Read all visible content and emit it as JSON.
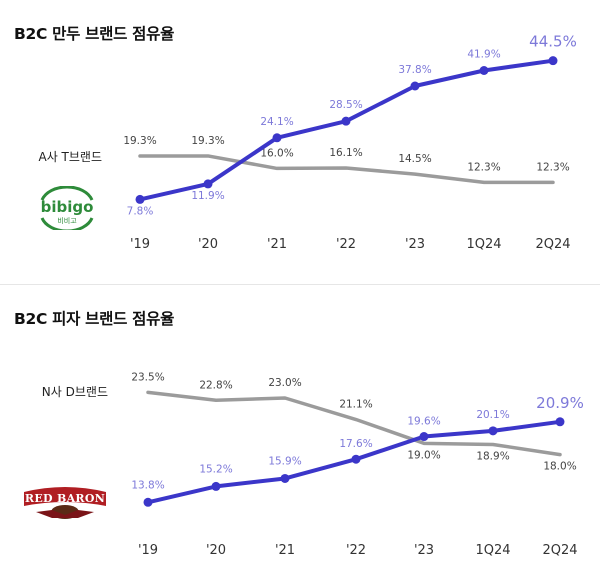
{
  "chart_data": [
    {
      "type": "line",
      "title": "B2C 만두 브랜드 점유율",
      "categories": [
        "'19",
        "'20",
        "'21",
        "'22",
        "'23",
        "1Q24",
        "2Q24"
      ],
      "series": [
        {
          "name": "A사 T브랜드",
          "values": [
            19.3,
            19.3,
            16.0,
            16.1,
            14.5,
            12.3,
            12.3
          ],
          "color": "#9b9b9b"
        },
        {
          "values": [
            7.8,
            11.9,
            24.1,
            28.5,
            37.8,
            41.9,
            44.5
          ],
          "color": "#3b36c9",
          "logo": "bibigo"
        }
      ],
      "value_suffix": "%",
      "ylim": [
        5,
        46
      ],
      "grid": false
    },
    {
      "type": "line",
      "title": "B2C 피자 브랜드 점유율",
      "categories": [
        "'19",
        "'20",
        "'21",
        "'22",
        "'23",
        "1Q24",
        "2Q24"
      ],
      "series": [
        {
          "name": "N사 D브랜드",
          "values": [
            23.5,
            22.8,
            23.0,
            21.1,
            19.0,
            18.9,
            18.0
          ],
          "color": "#9b9b9b"
        },
        {
          "values": [
            13.8,
            15.2,
            15.9,
            17.6,
            19.6,
            20.1,
            20.9
          ],
          "color": "#3b36c9",
          "logo": "RED BARON"
        }
      ],
      "value_suffix": "%",
      "ylim": [
        12.5,
        24.5
      ],
      "grid": false
    }
  ],
  "logos": {
    "bibigo_word": "bibigo",
    "bibigo_sub": "비비고",
    "redbaron_word": "RED BARON"
  },
  "colors": {
    "brand": "#3b36c9",
    "competitor": "#9b9b9b",
    "brand_label": "#7d79d9",
    "competitor_label": "#444444"
  }
}
